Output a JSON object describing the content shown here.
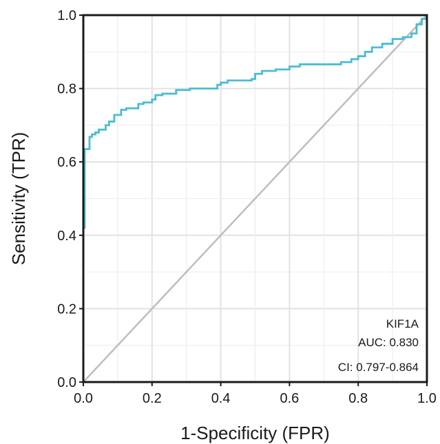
{
  "chart_data": {
    "type": "line",
    "xlabel": "1-Specificity (FPR)",
    "ylabel": "Sensitivity (TPR)",
    "xlim": [
      0,
      1
    ],
    "ylim": [
      0,
      1
    ],
    "xticks": [
      "0.0",
      "0.2",
      "0.4",
      "0.6",
      "0.8",
      "1.0"
    ],
    "yticks": [
      "0.0",
      "0.2",
      "0.4",
      "0.6",
      "0.8",
      "1.0"
    ],
    "grid": true,
    "reference_line": {
      "from": [
        0,
        0
      ],
      "to": [
        1,
        1
      ],
      "color": "#bdbdbd"
    },
    "annotation": {
      "lines": [
        "KIF1A",
        "AUC: 0.830",
        "CI: 0.797-0.864"
      ],
      "placement": "bottom-right"
    },
    "series": [
      {
        "color": "#4bbcd3",
        "points": [
          [
            0.0,
            0.0
          ],
          [
            0.0,
            0.42
          ],
          [
            0.004,
            0.42
          ],
          [
            0.004,
            0.635
          ],
          [
            0.018,
            0.635
          ],
          [
            0.018,
            0.668
          ],
          [
            0.025,
            0.668
          ],
          [
            0.025,
            0.675
          ],
          [
            0.035,
            0.675
          ],
          [
            0.035,
            0.68
          ],
          [
            0.045,
            0.68
          ],
          [
            0.045,
            0.688
          ],
          [
            0.065,
            0.688
          ],
          [
            0.065,
            0.7
          ],
          [
            0.075,
            0.7
          ],
          [
            0.075,
            0.71
          ],
          [
            0.09,
            0.71
          ],
          [
            0.09,
            0.728
          ],
          [
            0.11,
            0.728
          ],
          [
            0.11,
            0.742
          ],
          [
            0.125,
            0.742
          ],
          [
            0.125,
            0.746
          ],
          [
            0.16,
            0.746
          ],
          [
            0.16,
            0.758
          ],
          [
            0.175,
            0.758
          ],
          [
            0.175,
            0.762
          ],
          [
            0.2,
            0.762
          ],
          [
            0.2,
            0.77
          ],
          [
            0.21,
            0.77
          ],
          [
            0.21,
            0.782
          ],
          [
            0.23,
            0.782
          ],
          [
            0.23,
            0.786
          ],
          [
            0.27,
            0.786
          ],
          [
            0.27,
            0.796
          ],
          [
            0.31,
            0.796
          ],
          [
            0.31,
            0.8
          ],
          [
            0.39,
            0.8
          ],
          [
            0.39,
            0.81
          ],
          [
            0.4,
            0.81
          ],
          [
            0.4,
            0.816
          ],
          [
            0.42,
            0.816
          ],
          [
            0.42,
            0.822
          ],
          [
            0.49,
            0.822
          ],
          [
            0.49,
            0.826
          ],
          [
            0.5,
            0.826
          ],
          [
            0.5,
            0.84
          ],
          [
            0.52,
            0.84
          ],
          [
            0.52,
            0.848
          ],
          [
            0.56,
            0.848
          ],
          [
            0.56,
            0.852
          ],
          [
            0.6,
            0.852
          ],
          [
            0.6,
            0.86
          ],
          [
            0.63,
            0.86
          ],
          [
            0.63,
            0.866
          ],
          [
            0.75,
            0.866
          ],
          [
            0.75,
            0.872
          ],
          [
            0.78,
            0.872
          ],
          [
            0.78,
            0.88
          ],
          [
            0.8,
            0.88
          ],
          [
            0.8,
            0.888
          ],
          [
            0.82,
            0.888
          ],
          [
            0.82,
            0.9
          ],
          [
            0.84,
            0.9
          ],
          [
            0.84,
            0.912
          ],
          [
            0.87,
            0.912
          ],
          [
            0.87,
            0.922
          ],
          [
            0.9,
            0.922
          ],
          [
            0.9,
            0.935
          ],
          [
            0.93,
            0.935
          ],
          [
            0.93,
            0.94
          ],
          [
            0.955,
            0.94
          ],
          [
            0.955,
            0.95
          ],
          [
            0.97,
            0.95
          ],
          [
            0.97,
            0.975
          ],
          [
            0.985,
            0.975
          ],
          [
            0.985,
            0.99
          ],
          [
            1.0,
            0.99
          ],
          [
            1.0,
            1.0
          ]
        ]
      }
    ]
  }
}
